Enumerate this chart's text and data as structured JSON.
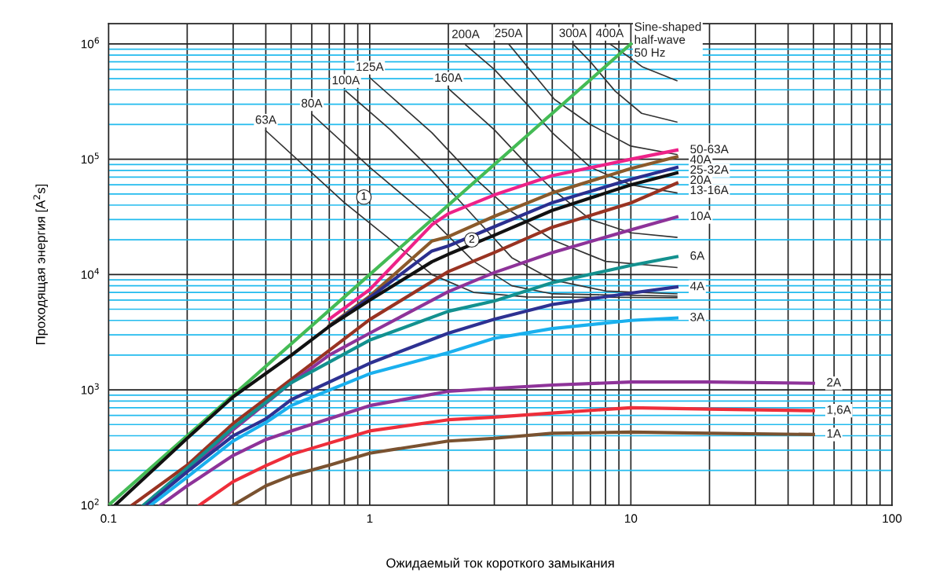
{
  "chart_data": {
    "type": "line",
    "xlabel": "Ожидаемый ток короткого замыкания",
    "ylabel": "Проходящая энергия [A$^{2}$s]",
    "log": "xy",
    "xlim": [
      0.1,
      100
    ],
    "ylim": [
      100,
      1500000
    ],
    "xticks": [
      0.1,
      {
        "value": 0.2,
        "label": null
      },
      {
        "value": 0.3,
        "label": null
      },
      {
        "value": 0.4,
        "label": null
      },
      {
        "value": 0.5,
        "label": null
      },
      {
        "value": 0.6,
        "label": null
      },
      {
        "value": 0.7,
        "label": null
      },
      {
        "value": 0.8,
        "label": null
      },
      {
        "value": 0.9,
        "label": null
      },
      1,
      {
        "value": 2,
        "label": null
      },
      {
        "value": 3,
        "label": null
      },
      {
        "value": 4,
        "label": null
      },
      {
        "value": 5,
        "label": null
      },
      {
        "value": 6,
        "label": null
      },
      {
        "value": 7,
        "label": null
      },
      {
        "value": 8,
        "label": null
      },
      {
        "value": 9,
        "label": null
      },
      10,
      {
        "value": 20,
        "label": null
      },
      {
        "value": 30,
        "label": null
      },
      {
        "value": 40,
        "label": null
      },
      {
        "value": 50,
        "label": null
      },
      {
        "value": 60,
        "label": null
      },
      {
        "value": 70,
        "label": null
      },
      {
        "value": 80,
        "label": null
      },
      {
        "value": 90,
        "label": null
      },
      100
    ],
    "yticks": [
      {
        "value": 100,
        "label": "10$^{2}$"
      },
      {
        "value": 200,
        "label": null
      },
      {
        "value": 300,
        "label": null
      },
      {
        "value": 400,
        "label": null
      },
      {
        "value": 500,
        "label": null
      },
      {
        "value": 600,
        "label": null
      },
      {
        "value": 700,
        "label": null
      },
      {
        "value": 800,
        "label": null
      },
      {
        "value": 900,
        "label": null
      },
      {
        "value": 1000,
        "label": "10$^{3}$"
      },
      {
        "value": 2000,
        "label": null
      },
      {
        "value": 3000,
        "label": null
      },
      {
        "value": 4000,
        "label": null
      },
      {
        "value": 5000,
        "label": null
      },
      {
        "value": 6000,
        "label": null
      },
      {
        "value": 7000,
        "label": null
      },
      {
        "value": 8000,
        "label": null
      },
      {
        "value": 9000,
        "label": null
      },
      {
        "value": 10000,
        "label": "10$^{4}$"
      },
      {
        "value": 20000,
        "label": null
      },
      {
        "value": 30000,
        "label": null
      },
      {
        "value": 40000,
        "label": null
      },
      {
        "value": 50000,
        "label": null
      },
      {
        "value": 60000,
        "label": null
      },
      {
        "value": 70000,
        "label": null
      },
      {
        "value": 80000,
        "label": null
      },
      {
        "value": 90000,
        "label": null
      },
      {
        "value": 100000,
        "label": "10$^{5}$"
      },
      {
        "value": 200000,
        "label": null
      },
      {
        "value": 300000,
        "label": null
      },
      {
        "value": 400000,
        "label": null
      },
      {
        "value": 500000,
        "label": null
      },
      {
        "value": 600000,
        "label": null
      },
      {
        "value": 700000,
        "label": null
      },
      {
        "value": 800000,
        "label": null
      },
      {
        "value": 900000,
        "label": null
      },
      {
        "value": 1000000,
        "label": "10$^{6}$"
      }
    ],
    "grid": true,
    "legend": false,
    "marker": "none",
    "line_style": "solid",
    "series": [
      {
        "name": "Sine-shaped\nhalf-wave\n50 Hz",
        "color": "#44bb55",
        "x": [
          0.1,
          1,
          10
        ],
        "values": [
          100,
          10000,
          1000000
        ]
      },
      {
        "name": "50-63A",
        "color": "#ee2288",
        "x": [
          0.7,
          1,
          1.73,
          2,
          3,
          5,
          10,
          15
        ],
        "values": [
          4100,
          7400,
          27000,
          33700,
          49000,
          72000,
          100000,
          120000
        ]
      },
      {
        "name": "40A",
        "color": "#8b5a2b",
        "x": [
          0.7,
          1,
          1.73,
          2,
          3,
          5,
          10,
          15
        ],
        "values": [
          3600,
          6500,
          19500,
          21300,
          32000,
          51000,
          83000,
          105000
        ]
      },
      {
        "name": "25-32A",
        "color": "#2b2f8f",
        "x": [
          0.7,
          1,
          1.73,
          2,
          3,
          5,
          10,
          15
        ],
        "values": [
          3550,
          6300,
          16000,
          17700,
          26000,
          42000,
          67000,
          85000
        ]
      },
      {
        "name": "20A",
        "color": "#111111",
        "x": [
          0.106,
          0.2,
          0.3,
          0.5,
          0.7,
          1,
          1.73,
          2,
          3,
          5,
          10,
          15
        ],
        "values": [
          100,
          380,
          870,
          1990,
          3550,
          6000,
          12900,
          15000,
          21900,
          36000,
          60000,
          76000
        ]
      },
      {
        "name": "13-16A",
        "color": "#993322",
        "x": [
          0.123,
          0.2,
          0.3,
          0.5,
          1,
          2,
          3,
          5,
          10,
          15
        ],
        "values": [
          100,
          222,
          510,
          1230,
          4070,
          10600,
          15500,
          25700,
          41800,
          62000
        ]
      },
      {
        "name": "10A",
        "color": "#8e3399",
        "x": [
          0.15,
          0.2,
          0.3,
          0.5,
          0.7,
          1,
          2,
          3,
          5,
          10,
          15
        ],
        "values": [
          120,
          200,
          450,
          1150,
          2000,
          3100,
          7100,
          10400,
          15500,
          24400,
          31600
        ]
      },
      {
        "name": "6A",
        "color": "#13918f",
        "x": [
          0.136,
          0.2,
          0.3,
          0.5,
          1,
          2,
          3,
          5,
          10,
          15
        ],
        "values": [
          100,
          210,
          470,
          1150,
          2700,
          4800,
          5900,
          8500,
          12000,
          14300
        ]
      },
      {
        "name": "4A",
        "color": "#2e3192",
        "x": [
          0.14,
          0.2,
          0.3,
          0.4,
          0.5,
          1,
          2,
          3,
          5,
          10,
          15
        ],
        "values": [
          100,
          195,
          400,
          560,
          820,
          1700,
          3100,
          4100,
          5500,
          6900,
          7800
        ]
      },
      {
        "name": "3A",
        "color": "#1ab0ee",
        "x": [
          0.145,
          0.2,
          0.3,
          0.4,
          0.5,
          1,
          2,
          3,
          5,
          10,
          15
        ],
        "values": [
          100,
          175,
          360,
          520,
          730,
          1380,
          2100,
          2800,
          3400,
          4000,
          4200
        ]
      },
      {
        "name": "2A",
        "color": "#8e3399",
        "x": [
          0.158,
          0.2,
          0.3,
          0.4,
          0.5,
          1,
          2,
          3,
          5,
          10,
          20,
          50
        ],
        "values": [
          100,
          147,
          270,
          370,
          440,
          730,
          970,
          1030,
          1100,
          1170,
          1170,
          1140
        ]
      },
      {
        "name": "1,6A",
        "color": "#ee2e3a",
        "x": [
          0.223,
          0.3,
          0.4,
          0.5,
          1,
          2,
          3,
          5,
          10,
          20,
          50
        ],
        "values": [
          100,
          160,
          220,
          275,
          440,
          550,
          580,
          630,
          700,
          680,
          660
        ]
      },
      {
        "name": "1A",
        "color": "#7a5230",
        "x": [
          0.3,
          0.4,
          0.5,
          0.7,
          1,
          2,
          3,
          5,
          10,
          20,
          50
        ],
        "values": [
          100,
          147,
          180,
          222,
          282,
          360,
          380,
          420,
          430,
          420,
          410
        ]
      },
      {
        "name": "63A",
        "color": "#333333",
        "x": [
          0.4,
          0.8,
          1.2,
          1.73,
          2.5,
          4,
          15
        ],
        "values": [
          177000,
          42000,
          20000,
          10000,
          7000,
          6400,
          6300
        ]
      },
      {
        "name": "80A",
        "color": "#333333",
        "x": [
          0.6,
          1,
          1.73,
          2.5,
          3.5,
          5,
          15
        ],
        "values": [
          246000,
          85000,
          30000,
          13000,
          8000,
          6800,
          6500
        ]
      },
      {
        "name": "100A",
        "color": "#333333",
        "x": [
          0.81,
          1.2,
          1.73,
          2.5,
          3.5,
          5,
          8,
          15
        ],
        "values": [
          390000,
          180000,
          80000,
          32000,
          14000,
          9000,
          7200,
          6800
        ]
      },
      {
        "name": "125A",
        "color": "#333333",
        "x": [
          1,
          1.73,
          2.5,
          3.5,
          5,
          8,
          15
        ],
        "values": [
          510000,
          170000,
          70000,
          35000,
          20000,
          13000,
          11500
        ]
      },
      {
        "name": "160A",
        "color": "#333333",
        "x": [
          2,
          3,
          4,
          5,
          7,
          10,
          15
        ],
        "values": [
          410000,
          180000,
          90000,
          55000,
          30000,
          23000,
          21000
        ]
      },
      {
        "name": "200A",
        "color": "#333333",
        "x": [
          2.33,
          3,
          4,
          5,
          7,
          10,
          15
        ],
        "values": [
          980000,
          600000,
          300000,
          170000,
          85000,
          60000,
          51000
        ]
      },
      {
        "name": "250A",
        "color": "#333333",
        "x": [
          3.4,
          5.1,
          7,
          10,
          15
        ],
        "values": [
          1000000,
          330000,
          200000,
          130000,
          110000
        ]
      },
      {
        "name": "300A",
        "color": "#333333",
        "x": [
          6,
          7,
          8.7,
          11,
          15
        ],
        "values": [
          1000000,
          700000,
          390000,
          250000,
          210000
        ]
      },
      {
        "name": "400A",
        "color": "#333333",
        "x": [
          8.3,
          10,
          11.1,
          15
        ],
        "values": [
          1000000,
          750000,
          630000,
          480000
        ]
      }
    ],
    "annotations": [
      {
        "text": "1",
        "x": 0.95,
        "y": 47000
      },
      {
        "text": "2",
        "x": 2.46,
        "y": 20000
      }
    ]
  }
}
